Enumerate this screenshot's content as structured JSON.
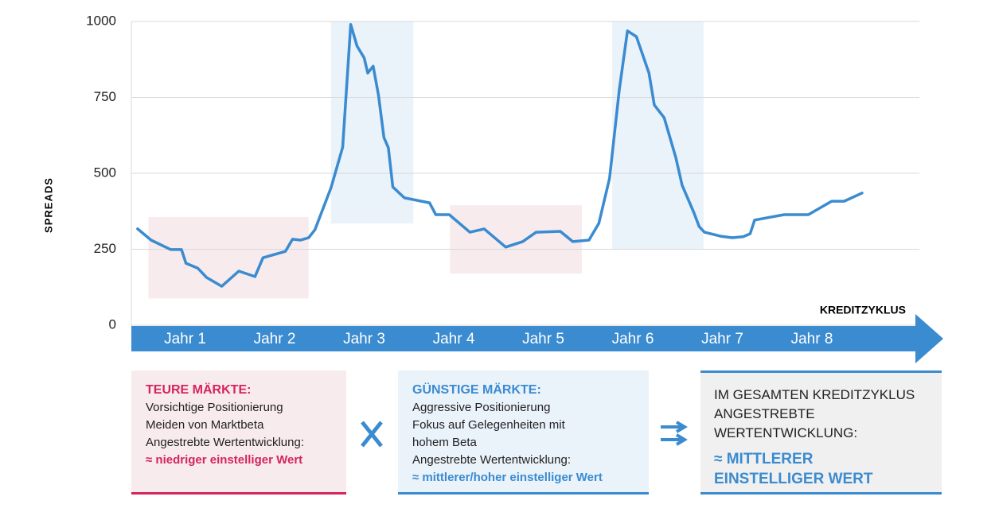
{
  "chart_data": {
    "type": "line",
    "y_label": "SPREADS",
    "x_axis_title": "KREDITZYKLUS",
    "xlim": [
      0.4,
      9.2
    ],
    "xticks": [
      {
        "value": 1,
        "label": "Jahr 1"
      },
      {
        "value": 2,
        "label": "Jahr 2"
      },
      {
        "value": 3,
        "label": "Jahr 3"
      },
      {
        "value": 4,
        "label": "Jahr 4"
      },
      {
        "value": 5,
        "label": "Jahr 5"
      },
      {
        "value": 6,
        "label": "Jahr 6"
      },
      {
        "value": 7,
        "label": "Jahr 7"
      },
      {
        "value": 8,
        "label": "Jahr 8"
      }
    ],
    "ylim": [
      0,
      1000
    ],
    "yticks": [
      0,
      250,
      500,
      750,
      1000
    ],
    "grid": true,
    "color": "#3a8bd0",
    "x": [
      0.47,
      0.62,
      0.84,
      0.96,
      1.01,
      1.14,
      1.24,
      1.41,
      1.6,
      1.78,
      1.87,
      2.12,
      2.2,
      2.29,
      2.38,
      2.45,
      2.63,
      2.76,
      2.85,
      2.92,
      3.0,
      3.04,
      3.1,
      3.16,
      3.22,
      3.27,
      3.32,
      3.45,
      3.73,
      3.8,
      3.95,
      4.18,
      4.34,
      4.58,
      4.77,
      4.92,
      5.19,
      5.33,
      5.51,
      5.62,
      5.74,
      5.85,
      5.94,
      6.04,
      6.18,
      6.24,
      6.35,
      6.48,
      6.55,
      6.68,
      6.74,
      6.8,
      6.98,
      7.11,
      7.23,
      7.31,
      7.36,
      7.69,
      7.96,
      8.22,
      8.36,
      8.56
    ],
    "values": [
      317,
      280,
      249,
      249,
      204,
      188,
      157,
      128,
      178,
      160,
      222,
      243,
      283,
      280,
      288,
      314,
      453,
      586,
      990,
      919,
      880,
      830,
      853,
      757,
      618,
      584,
      455,
      419,
      403,
      364,
      364,
      306,
      317,
      257,
      275,
      306,
      309,
      275,
      280,
      335,
      484,
      777,
      969,
      950,
      830,
      725,
      683,
      552,
      461,
      372,
      325,
      306,
      293,
      288,
      291,
      301,
      346,
      364,
      364,
      408,
      408,
      435
    ],
    "shaded_regions": [
      {
        "x": [
          0.59,
          2.38
        ],
        "y": [
          88,
          356
        ],
        "color": "#f7ebee"
      },
      {
        "x": [
          2.63,
          3.55
        ],
        "y": [
          335,
          1000
        ],
        "color": "#eaf2fa"
      },
      {
        "x": [
          3.96,
          5.43
        ],
        "y": [
          170,
          395
        ],
        "color": "#f7ebee"
      },
      {
        "x": [
          5.77,
          6.79
        ],
        "y": [
          249,
          1000
        ],
        "color": "#eaf2fa"
      }
    ]
  },
  "panels": [
    {
      "title": "TEURE MÄRKTE:",
      "lines": [
        "Vorsichtige Positionierung",
        "Meiden von Marktbeta",
        "Angestrebte Wertentwicklung:"
      ],
      "highlight": [
        "≈ niedriger einstelliger Wert"
      ]
    },
    {
      "title": "GÜNSTIGE MÄRKTE:",
      "lines": [
        "Aggressive Positionierung",
        "Fokus auf Gelegenheiten mit",
        "hohem Beta",
        "Angestrebte Wertentwicklung:"
      ],
      "highlight": [
        "≈ mittlerer/hoher einstelliger Wert"
      ]
    },
    {
      "lines": [
        "IM GESAMTEN KREDITZYKLUS",
        "ANGESTREBTE",
        "WERTENTWICKLUNG:"
      ],
      "highlight": [
        "≈ MITTLERER",
        "EINSTELLIGER WERT"
      ]
    }
  ]
}
